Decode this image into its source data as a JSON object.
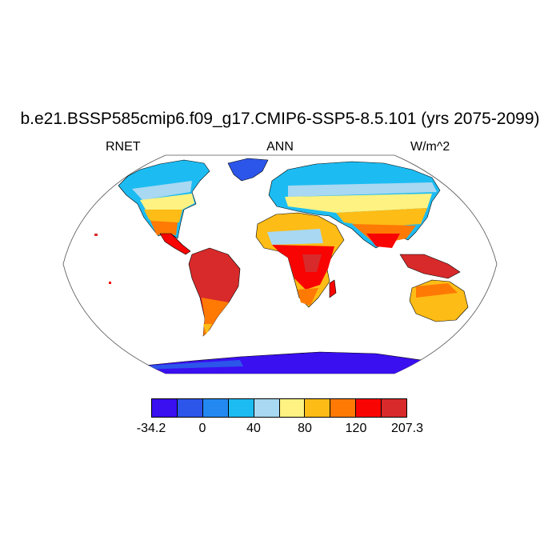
{
  "title": "b.e21.BSSP585cmip6.f09_g17.CMIP6-SSP5-8.5.101 (yrs 2075-2099)",
  "variable": "RNET",
  "period": "ANN",
  "units": "W/m^2",
  "colorbar": {
    "colors": [
      "#3a0ff0",
      "#2c55ea",
      "#2389f0",
      "#1cbcf2",
      "#a8d8f2",
      "#fdf282",
      "#fdbc16",
      "#fe7a05",
      "#f80403",
      "#d82a2a"
    ],
    "labels": [
      "-34.2",
      "0",
      "40",
      "80",
      "120",
      "207.3"
    ]
  }
}
